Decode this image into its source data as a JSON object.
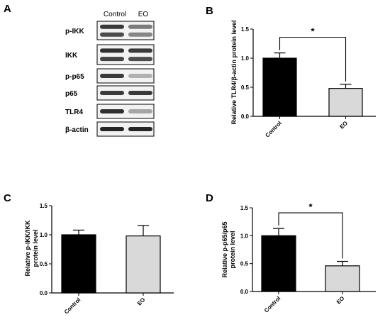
{
  "panels": {
    "A": "A",
    "B": "B",
    "C": "C",
    "D": "D"
  },
  "colors": {
    "control_bar": "#000000",
    "eo_bar": "#d9d9d9",
    "axis": "#000000",
    "blot_background": "#f2f2f2",
    "blot_band": "#1a1a1a"
  },
  "western_blot": {
    "lanes": [
      "Control",
      "EO"
    ],
    "rows": [
      {
        "label": "p-IKK",
        "control": 0.85,
        "eo": 0.55,
        "double_band": true
      },
      {
        "label": "IKK",
        "control": 0.9,
        "eo": 0.85,
        "double_band": true
      },
      {
        "label": "p-p65",
        "control": 0.85,
        "eo": 0.3,
        "double_band": false
      },
      {
        "label": "p65",
        "control": 0.85,
        "eo": 0.85,
        "double_band": false
      },
      {
        "label": "TLR4",
        "control": 0.9,
        "eo": 0.35,
        "double_band": false
      },
      {
        "label": "β-actin",
        "control": 0.95,
        "eo": 0.95,
        "double_band": false
      }
    ]
  },
  "chart_data": [
    {
      "panel": "B",
      "type": "bar",
      "categories": [
        "Control",
        "EO"
      ],
      "values": [
        1.0,
        0.48
      ],
      "errors": [
        0.09,
        0.07
      ],
      "ylabel": "Relative TLR4/β-actin protein level",
      "ylim": [
        0,
        1.5
      ],
      "yticks": [
        "0.0",
        "0.5",
        "1.0",
        "1.5"
      ],
      "significance": "*",
      "grid": false
    },
    {
      "panel": "C",
      "type": "bar",
      "categories": [
        "Control",
        "EO"
      ],
      "values": [
        1.0,
        0.98
      ],
      "errors": [
        0.08,
        0.18
      ],
      "ylabel_lines": [
        "Relative p-IKK/IKK",
        "protein level"
      ],
      "ylim": [
        0,
        1.5
      ],
      "yticks": [
        "0.0",
        "0.5",
        "1.0",
        "1.5"
      ],
      "significance": "",
      "grid": false
    },
    {
      "panel": "D",
      "type": "bar",
      "categories": [
        "Control",
        "EO"
      ],
      "values": [
        1.0,
        0.46
      ],
      "errors": [
        0.13,
        0.08
      ],
      "ylabel_lines": [
        "Relative p-p65/p65",
        "protein level"
      ],
      "ylim": [
        0,
        1.5
      ],
      "yticks": [
        "0.0",
        "0.5",
        "1.0",
        "1.5"
      ],
      "significance": "*",
      "grid": false
    }
  ]
}
